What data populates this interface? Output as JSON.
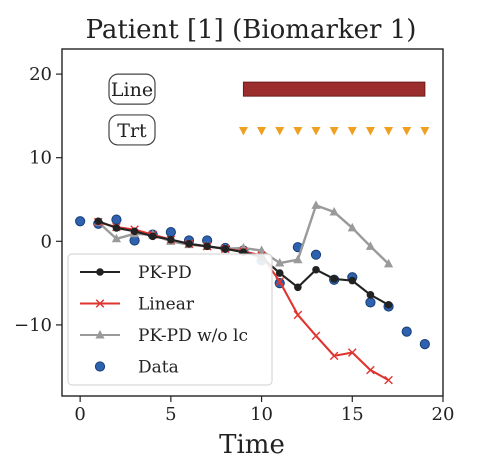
{
  "chart_data": {
    "type": "line",
    "title": "Patient [1] (Biomarker 1)",
    "xlabel": "Time",
    "ylabel": "",
    "xlim": [
      -1,
      20
    ],
    "ylim": [
      -18.5,
      23
    ],
    "x_ticks": [
      0,
      5,
      10,
      15,
      20
    ],
    "y_ticks": [
      -10,
      0,
      10,
      20
    ],
    "grid": false,
    "legend_position": "lower-left",
    "series": [
      {
        "name": "PK-PD",
        "color": "#222222",
        "marker": "circle",
        "x": [
          1,
          2,
          3,
          4,
          5,
          6,
          7,
          8,
          9,
          10,
          11,
          12,
          13,
          14,
          15,
          16,
          17
        ],
        "y": [
          2.4,
          1.6,
          1.2,
          0.6,
          0.2,
          -0.3,
          -0.6,
          -0.9,
          -1.3,
          -1.9,
          -3.8,
          -5.5,
          -3.4,
          -4.5,
          -4.7,
          -6.4,
          -7.6
        ]
      },
      {
        "name": "Linear",
        "color": "#e0342f",
        "marker": "x",
        "x": [
          1,
          2,
          3,
          4,
          5,
          6,
          7,
          8,
          9,
          10,
          11,
          12,
          13,
          14,
          15,
          16,
          17
        ],
        "y": [
          2.3,
          1.7,
          1.4,
          0.8,
          0.2,
          -0.3,
          -0.6,
          -0.9,
          -1.2,
          -1.7,
          -4.8,
          -8.8,
          -11.3,
          -13.7,
          -13.3,
          -15.4,
          -16.6
        ]
      },
      {
        "name": "PK-PD w/o lc",
        "color": "#9a9a9a",
        "marker": "triangle",
        "x": [
          1,
          2,
          3,
          4,
          5,
          6,
          7,
          8,
          9,
          10,
          11,
          12,
          13,
          14,
          15,
          16,
          17
        ],
        "y": [
          2.3,
          0.3,
          0.9,
          0.8,
          0.0,
          -0.4,
          -0.6,
          -0.9,
          -0.8,
          -1.1,
          -2.6,
          -2.2,
          4.3,
          3.5,
          1.6,
          -0.6,
          -2.7
        ]
      },
      {
        "name": "Data",
        "color": "#2f62ae",
        "marker": "dot",
        "x": [
          0,
          1,
          2,
          3,
          4,
          5,
          6,
          7,
          8,
          9,
          10,
          11,
          12,
          13,
          14,
          15,
          16,
          17,
          18,
          19
        ],
        "y": [
          2.4,
          2.1,
          2.6,
          0.1,
          0.8,
          1.1,
          0.1,
          0.1,
          -0.8,
          -1.1,
          -2.3,
          -5.0,
          -0.7,
          -1.6,
          -4.6,
          -4.3,
          -7.3,
          -7.8,
          -10.8,
          -12.3
        ]
      }
    ],
    "line_bar": {
      "label": "Line",
      "x_start": 9,
      "x_end": 19,
      "y": 18.2,
      "color": "#9b2d2d"
    },
    "treatment_markers": {
      "label": "Trt",
      "color": "#f0a020",
      "x": [
        9,
        10,
        11,
        12,
        13,
        14,
        15,
        16,
        17,
        18,
        19
      ],
      "y": 13.2
    }
  }
}
